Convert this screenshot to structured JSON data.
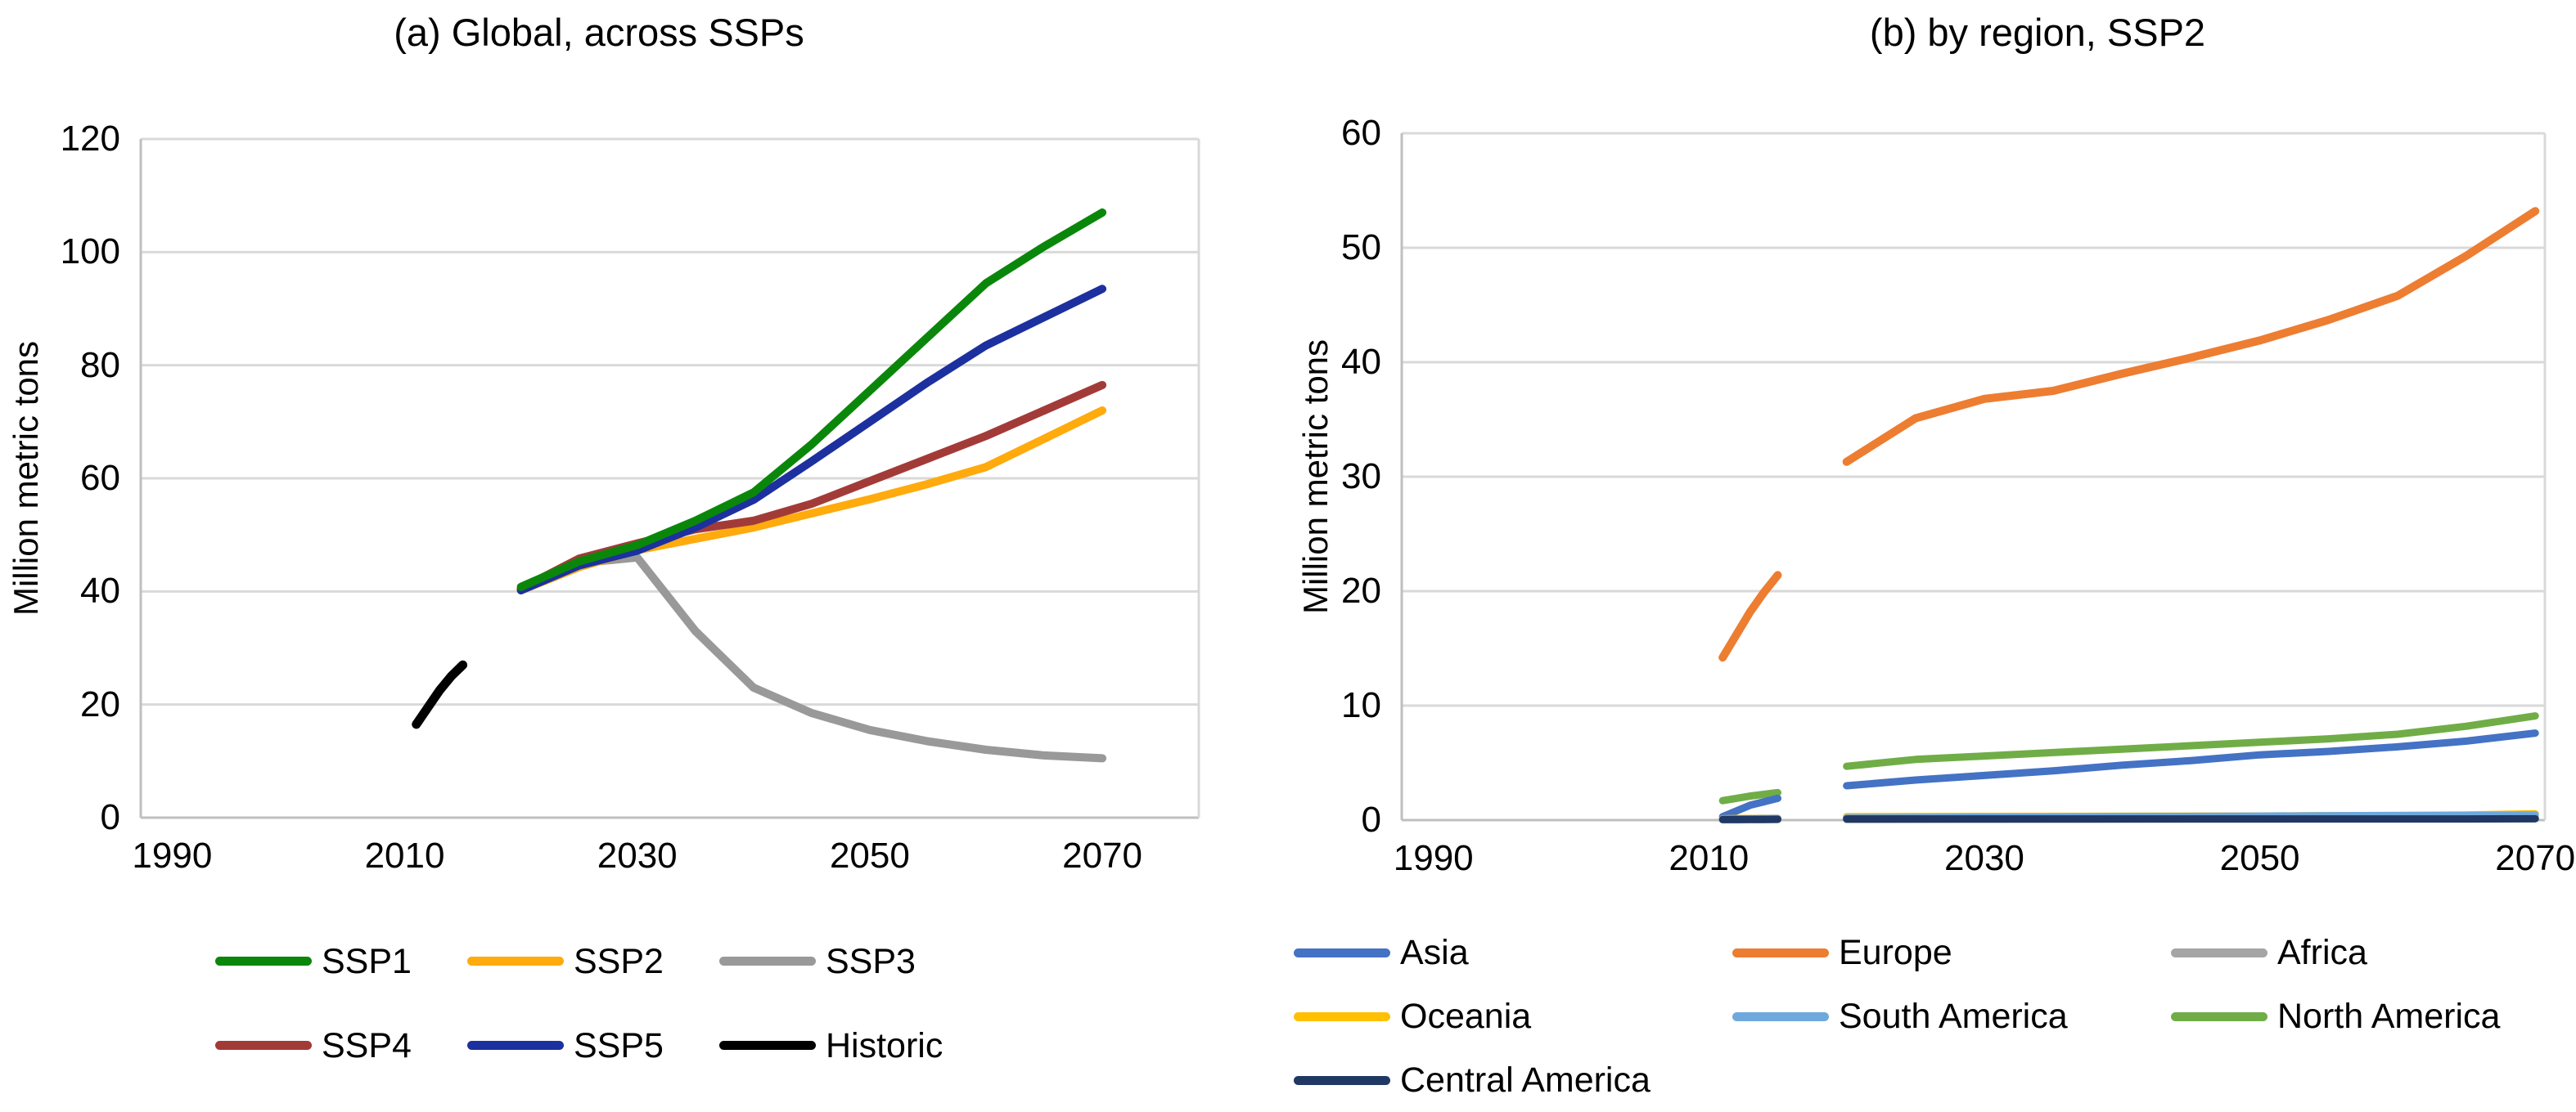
{
  "style": {
    "background": "#FFFFFF",
    "grid_color": "#D9D9D9",
    "axis_color": "#BFBFBF",
    "text_color": "#000000"
  },
  "chart_data": [
    {
      "type": "line",
      "key": "a",
      "title": "(a) Global, across SSPs",
      "xlabel": "",
      "ylabel": "Million metric tons",
      "ylim": [
        0,
        120
      ],
      "yticks": [
        0,
        20,
        40,
        60,
        80,
        100,
        120
      ],
      "xticks": [
        1990,
        2010,
        2030,
        2050,
        2070
      ],
      "xlim": [
        1987.3,
        2078.3
      ],
      "grid": "horizontal",
      "legend_position": "bottom",
      "legend_rows": [
        [
          "SSP1",
          "SSP2",
          "SSP3"
        ],
        [
          "SSP4",
          "SSP5",
          "Historic"
        ]
      ],
      "series": [
        {
          "name": "SSP3",
          "color": "#999999",
          "width": 10,
          "x": [
            2020,
            2025,
            2030,
            2035,
            2040,
            2045,
            2050,
            2055,
            2060,
            2065,
            2070
          ],
          "values": [
            40.5,
            45.0,
            46.0,
            33.0,
            23.0,
            18.5,
            15.5,
            13.5,
            12.0,
            11.0,
            10.5
          ]
        },
        {
          "name": "SSP2",
          "color": "#FFAA0D",
          "width": 10,
          "x": [
            2020,
            2025,
            2030,
            2035,
            2040,
            2045,
            2050,
            2055,
            2060,
            2065,
            2070
          ],
          "values": [
            40.2,
            44.3,
            47.3,
            49.3,
            51.3,
            53.8,
            56.3,
            59.0,
            62.0,
            67.0,
            72.0
          ]
        },
        {
          "name": "SSP4",
          "color": "#A23B38",
          "width": 10,
          "x": [
            2020,
            2025,
            2030,
            2035,
            2040,
            2045,
            2050,
            2055,
            2060,
            2065,
            2070
          ],
          "values": [
            40.5,
            45.8,
            48.5,
            51.0,
            52.5,
            55.5,
            59.5,
            63.5,
            67.5,
            72.0,
            76.5
          ]
        },
        {
          "name": "SSP5",
          "color": "#1D309F",
          "width": 10,
          "x": [
            2020,
            2025,
            2030,
            2035,
            2040,
            2045,
            2050,
            2055,
            2060,
            2065,
            2070
          ],
          "values": [
            40.2,
            44.6,
            47.2,
            51.3,
            56.2,
            63.0,
            70.0,
            77.0,
            83.5,
            88.5,
            93.5
          ]
        },
        {
          "name": "SSP1",
          "color": "#0A870A",
          "width": 10,
          "x": [
            2020,
            2025,
            2030,
            2035,
            2040,
            2045,
            2050,
            2055,
            2060,
            2065,
            2070
          ],
          "values": [
            40.8,
            45.3,
            48.2,
            52.5,
            57.5,
            66.0,
            75.5,
            85.0,
            94.5,
            101.0,
            107.0
          ]
        },
        {
          "name": "Historic",
          "color": "#000000",
          "width": 11,
          "x": [
            2011,
            2012,
            2013,
            2014,
            2015
          ],
          "values": [
            16.5,
            19.5,
            22.5,
            25.0,
            27.0
          ]
        }
      ]
    },
    {
      "type": "line",
      "key": "b",
      "title": "(b) by region, SSP2",
      "xlabel": "",
      "ylabel": "Million metric tons",
      "ylim": [
        0,
        60
      ],
      "yticks": [
        0,
        10,
        20,
        30,
        40,
        50,
        60
      ],
      "xticks": [
        1990,
        2010,
        2030,
        2050,
        2070
      ],
      "xlim": [
        1987.7,
        2070.7
      ],
      "grid": "horizontal",
      "legend_position": "bottom",
      "legend_rows": [
        [
          "Asia",
          "Europe",
          "Africa"
        ],
        [
          "Oceania",
          "South America",
          "North America"
        ],
        [
          "Central America"
        ]
      ],
      "series": [
        {
          "name": "Africa",
          "color": "#A5A5A5",
          "width": 9,
          "x": [
            2020,
            2025,
            2030,
            2035,
            2040,
            2045,
            2050,
            2055,
            2060,
            2065,
            2070
          ],
          "values": [
            0.05,
            0.06,
            0.07,
            0.08,
            0.09,
            0.1,
            0.1,
            0.11,
            0.12,
            0.13,
            0.15
          ]
        },
        {
          "name": "Oceania",
          "color": "#FFC000",
          "width": 9,
          "x": [
            2020,
            2025,
            2030,
            2035,
            2040,
            2045,
            2050,
            2055,
            2060,
            2065,
            2070
          ],
          "values": [
            0.3,
            0.31,
            0.32,
            0.33,
            0.34,
            0.35,
            0.36,
            0.38,
            0.4,
            0.45,
            0.55
          ]
        },
        {
          "name": "South America",
          "color": "#6FA8DC",
          "width": 9,
          "x": [
            2020,
            2025,
            2030,
            2035,
            2040,
            2045,
            2050,
            2055,
            2060,
            2065,
            2070
          ],
          "values": [
            0.2,
            0.22,
            0.25,
            0.27,
            0.3,
            0.32,
            0.35,
            0.38,
            0.4,
            0.42,
            0.45
          ]
        },
        {
          "name": "Central America",
          "color": "#203864",
          "width": 9,
          "x": [
            2020,
            2025,
            2030,
            2035,
            2040,
            2045,
            2050,
            2055,
            2060,
            2065,
            2070
          ],
          "values": [
            0.1,
            0.1,
            0.1,
            0.1,
            0.1,
            0.1,
            0.1,
            0.1,
            0.1,
            0.1,
            0.12
          ]
        },
        {
          "name": "Asia",
          "color": "#4472C4",
          "width": 9,
          "x": [
            2020,
            2025,
            2030,
            2035,
            2040,
            2045,
            2050,
            2055,
            2060,
            2065,
            2070
          ],
          "values": [
            3.0,
            3.5,
            3.9,
            4.3,
            4.8,
            5.2,
            5.7,
            6.0,
            6.4,
            6.9,
            7.6
          ]
        },
        {
          "name": "North America",
          "color": "#70AD47",
          "width": 9,
          "x": [
            2020,
            2025,
            2030,
            2035,
            2040,
            2045,
            2050,
            2055,
            2060,
            2065,
            2070
          ],
          "values": [
            4.7,
            5.3,
            5.6,
            5.9,
            6.2,
            6.5,
            6.8,
            7.1,
            7.5,
            8.2,
            9.1
          ]
        },
        {
          "name": "Europe",
          "color": "#ED7D31",
          "width": 10,
          "x": [
            2020,
            2025,
            2030,
            2035,
            2040,
            2045,
            2050,
            2055,
            2060,
            2065,
            2070
          ],
          "values": [
            31.3,
            35.1,
            36.8,
            37.5,
            39.0,
            40.4,
            41.9,
            43.7,
            45.8,
            49.3,
            53.2
          ]
        },
        {
          "name": "Europe (historic)",
          "color": "#ED7D31",
          "width": 10,
          "x": [
            2011,
            2012,
            2013,
            2014,
            2015
          ],
          "values": [
            14.2,
            16.2,
            18.2,
            19.9,
            21.4
          ]
        },
        {
          "name": "North America (historic)",
          "color": "#70AD47",
          "width": 9,
          "x": [
            2011,
            2012,
            2013,
            2014,
            2015
          ],
          "values": [
            1.7,
            1.9,
            2.1,
            2.25,
            2.4
          ]
        },
        {
          "name": "Asia (historic)",
          "color": "#4472C4",
          "width": 9,
          "x": [
            2011,
            2012,
            2013,
            2014,
            2015
          ],
          "values": [
            0.3,
            0.8,
            1.3,
            1.6,
            1.9
          ]
        },
        {
          "name": "Oceania (historic)",
          "color": "#FFC000",
          "width": 9,
          "x": [
            2011,
            2012,
            2013,
            2014,
            2015
          ],
          "values": [
            0.12,
            0.13,
            0.14,
            0.15,
            0.15
          ]
        },
        {
          "name": "South America (historic)",
          "color": "#6FA8DC",
          "width": 9,
          "x": [
            2011,
            2012,
            2013,
            2014,
            2015
          ],
          "values": [
            0.1,
            0.11,
            0.12,
            0.13,
            0.14
          ]
        },
        {
          "name": "Africa (historic)",
          "color": "#A5A5A5",
          "width": 9,
          "x": [
            2011,
            2012,
            2013,
            2014,
            2015
          ],
          "values": [
            0.03,
            0.03,
            0.04,
            0.04,
            0.05
          ]
        },
        {
          "name": "Central America (historic)",
          "color": "#203864",
          "width": 9,
          "x": [
            2011,
            2012,
            2013,
            2014,
            2015
          ],
          "values": [
            0.05,
            0.05,
            0.06,
            0.06,
            0.07
          ]
        }
      ]
    }
  ]
}
